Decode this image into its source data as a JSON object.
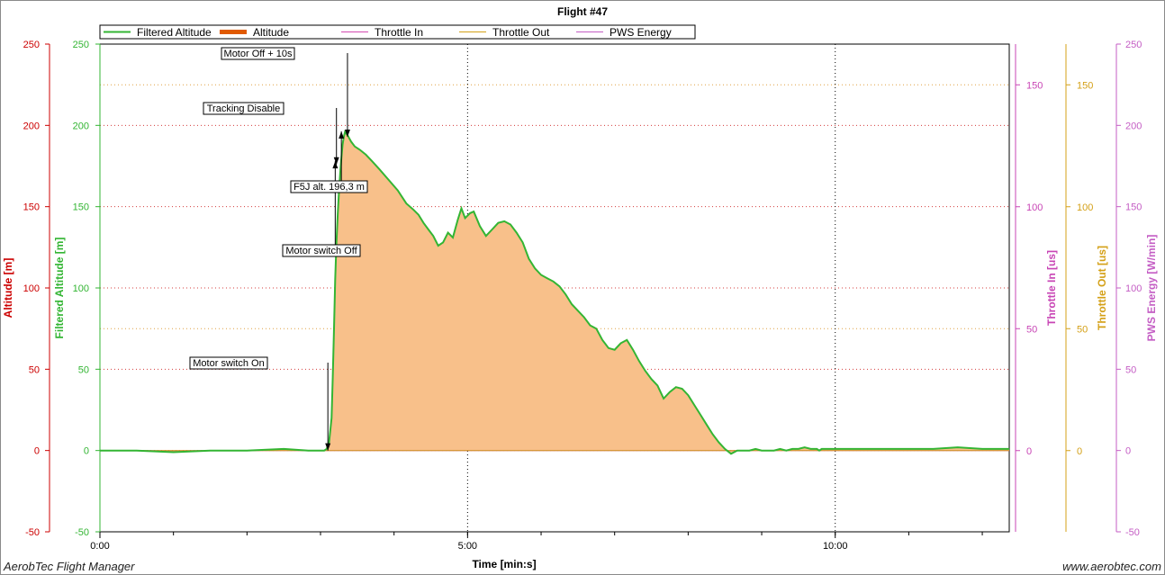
{
  "chart_data": {
    "type": "area",
    "title": "Flight #47",
    "xlabel": "Time [min:s]",
    "x_unit": "seconds",
    "xlim": [
      0,
      742
    ],
    "x_ticks": [
      {
        "v": 0,
        "label": "0:00"
      },
      {
        "v": 300,
        "label": "5:00"
      },
      {
        "v": 600,
        "label": "10:00"
      }
    ],
    "x_minor_step": 60,
    "x_grid_lines": [
      300,
      600
    ],
    "legend": {
      "placement": "top-left",
      "entries": [
        {
          "label": "Filtered Altitude",
          "color": "#33b533"
        },
        {
          "label": "Altitude",
          "color": "#e05a00"
        },
        {
          "label": "Throttle In",
          "color": "#d44ab0"
        },
        {
          "label": "Throttle Out",
          "color": "#d4a017"
        },
        {
          "label": "PWS Energy",
          "color": "#c45dc4"
        }
      ]
    },
    "axes": [
      {
        "label": "Altitude [m]",
        "color": "#cc0000",
        "range": [
          -50,
          250
        ],
        "ticks": [
          -50,
          0,
          50,
          100,
          150,
          200,
          250
        ]
      },
      {
        "label": "Filtered Altitude [m]",
        "color": "#33b533",
        "range": [
          -50,
          250
        ],
        "ticks": [
          -50,
          0,
          50,
          100,
          150,
          200,
          250
        ]
      },
      {
        "label": "Throttle In [us]",
        "color": "#c845b5",
        "range": [
          -33.3,
          166.7
        ],
        "ticks": [
          0,
          50,
          100,
          150
        ]
      },
      {
        "label": "Throttle Out [us]",
        "color": "#d4a017",
        "range": [
          -33.3,
          166.7
        ],
        "ticks": [
          0,
          50,
          100,
          150
        ]
      },
      {
        "label": "PWS Energy [W/min]",
        "color": "#c45dc4",
        "range": [
          -50,
          250
        ],
        "ticks": [
          -50,
          0,
          50,
          100,
          150,
          200,
          250
        ]
      }
    ],
    "h_grid_values": [
      0,
      50,
      100,
      150,
      200
    ],
    "h_grid_dotted_throttle": [
      50,
      150
    ],
    "fill_color": "#f8c08a",
    "series": [
      {
        "name": "Altitude",
        "color": "#e05a00",
        "x": [
          0,
          30,
          60,
          90,
          120,
          150,
          170,
          183,
          185,
          187,
          189,
          190,
          191,
          192,
          193,
          194,
          195,
          196,
          197,
          198,
          199,
          200,
          202,
          205,
          208,
          212,
          217,
          222,
          228,
          235,
          243,
          250,
          256,
          260,
          264,
          268,
          272,
          276,
          280,
          284,
          288,
          292,
          295,
          298,
          302,
          305,
          310,
          315,
          320,
          325,
          330,
          335,
          340,
          345,
          350,
          355,
          360,
          365,
          370,
          375,
          380,
          385,
          390,
          395,
          400,
          405,
          410,
          415,
          420,
          425,
          430,
          435,
          440,
          445,
          450,
          455,
          460,
          465,
          470,
          475,
          480,
          485,
          490,
          495,
          500,
          505,
          510,
          515,
          520,
          525,
          530,
          535,
          540,
          545,
          550,
          555,
          560,
          565,
          570,
          575,
          580,
          585,
          587,
          589,
          591,
          595,
          600,
          620,
          640,
          660,
          680,
          700,
          720,
          742
        ],
        "y": [
          0,
          0,
          -1,
          0,
          0,
          1,
          0,
          0,
          1,
          5,
          20,
          45,
          75,
          105,
          128,
          145,
          158,
          170,
          180,
          188,
          193,
          196,
          194,
          190,
          187,
          185,
          182,
          178,
          173,
          167,
          160,
          152,
          148,
          145,
          140,
          136,
          132,
          126,
          128,
          134,
          131,
          142,
          149,
          143,
          146,
          147,
          138,
          132,
          136,
          140,
          141,
          139,
          134,
          128,
          118,
          112,
          108,
          106,
          104,
          101,
          96,
          90,
          86,
          82,
          77,
          75,
          68,
          63,
          62,
          66,
          68,
          62,
          55,
          49,
          44,
          40,
          32,
          36,
          39,
          38,
          34,
          28,
          22,
          16,
          10,
          5,
          1,
          -2,
          0,
          0,
          0,
          1,
          0,
          0,
          0,
          1,
          0,
          1,
          1,
          2,
          1,
          1,
          0,
          1,
          1,
          1,
          1,
          1,
          1,
          1,
          1,
          2,
          1,
          1
        ]
      },
      {
        "name": "Filtered Altitude",
        "color": "#33b533",
        "note_same_as": "Altitude"
      },
      {
        "name": "Throttle In",
        "color": "#c845b5",
        "constant": 0
      },
      {
        "name": "Throttle Out",
        "color": "#d4a017",
        "constant": 0
      }
    ],
    "annotations": [
      {
        "text": "Motor switch On",
        "x": 186,
        "y": 0
      },
      {
        "text": "Motor switch Off",
        "x": 192,
        "y": 178
      },
      {
        "text": "Tracking Disable",
        "x": 193,
        "y": 176
      },
      {
        "text": "Motor Off + 10s",
        "x": 202,
        "y": 193
      },
      {
        "text": "F5J alt. 196,3 m",
        "x": 197,
        "y": 196.3
      }
    ]
  },
  "footer": {
    "left": "AerobTec Flight Manager",
    "right": "www.aerobtec.com"
  }
}
